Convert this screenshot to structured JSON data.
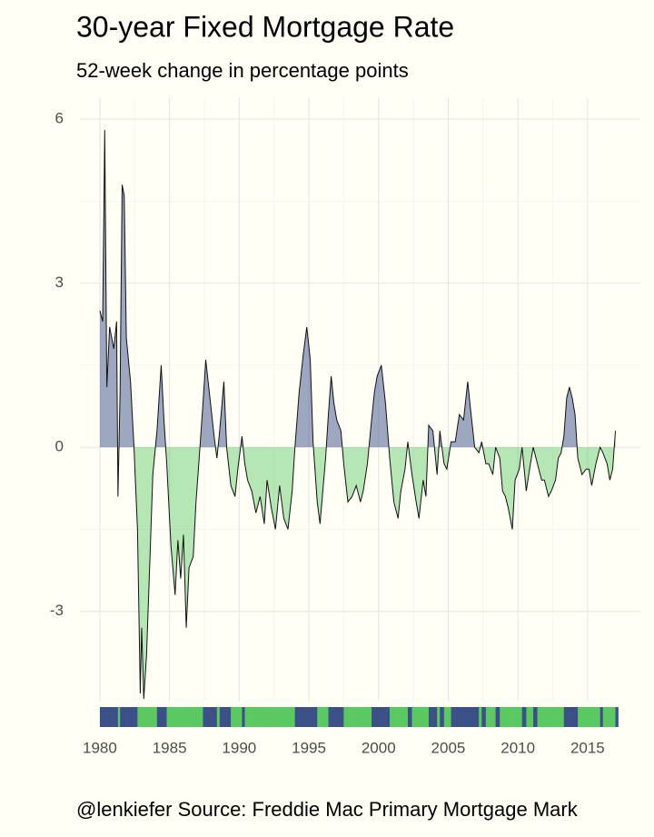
{
  "chart_data": {
    "type": "area",
    "title": "30-year Fixed Mortgage Rate",
    "subtitle": "52-week change in percentage points",
    "caption": "@lenkiefer Source: Freddie Mac Primary Mortgage Mark",
    "positive_color": "#3c5088",
    "negative_color": "#5bc862",
    "line_color": "#111111",
    "grid": true,
    "xlim": [
      1978.57,
      2018.79
    ],
    "xticks": [
      1980,
      1985,
      1990,
      1995,
      2000,
      2005,
      2010,
      2015
    ],
    "ylim": [
      -4.65,
      6.4
    ],
    "yticks": [
      -3,
      0,
      3,
      6
    ],
    "x": [
      1980.0,
      1980.2,
      1980.35,
      1980.5,
      1980.7,
      1981.0,
      1981.2,
      1981.3,
      1981.45,
      1981.6,
      1981.75,
      1981.9,
      1982.2,
      1982.45,
      1982.7,
      1982.9,
      1983.0,
      1983.15,
      1983.35,
      1983.6,
      1983.8,
      1984.1,
      1984.4,
      1984.6,
      1984.8,
      1985.1,
      1985.4,
      1985.6,
      1985.8,
      1986.0,
      1986.2,
      1986.4,
      1986.7,
      1986.9,
      1987.1,
      1987.4,
      1987.6,
      1987.9,
      1988.2,
      1988.4,
      1988.6,
      1988.9,
      1989.1,
      1989.4,
      1989.7,
      1989.9,
      1990.2,
      1990.4,
      1990.6,
      1990.9,
      1991.2,
      1991.5,
      1991.8,
      1992.0,
      1992.3,
      1992.6,
      1992.9,
      1993.2,
      1993.5,
      1993.8,
      1994.0,
      1994.3,
      1994.6,
      1994.85,
      1995.1,
      1995.3,
      1995.6,
      1995.8,
      1996.0,
      1996.2,
      1996.4,
      1996.6,
      1996.8,
      1997.0,
      1997.3,
      1997.5,
      1997.8,
      1998.1,
      1998.4,
      1998.7,
      1998.9,
      1999.2,
      1999.5,
      1999.7,
      1999.9,
      2000.2,
      2000.5,
      2000.8,
      2001.1,
      2001.4,
      2001.6,
      2001.9,
      2002.1,
      2002.4,
      2002.7,
      2002.9,
      2003.2,
      2003.4,
      2003.6,
      2003.9,
      2004.2,
      2004.4,
      2004.7,
      2004.9,
      2005.2,
      2005.5,
      2005.8,
      2006.1,
      2006.4,
      2006.6,
      2006.9,
      2007.2,
      2007.4,
      2007.7,
      2007.9,
      2008.2,
      2008.4,
      2008.7,
      2008.9,
      2009.1,
      2009.3,
      2009.6,
      2009.8,
      2010.1,
      2010.3,
      2010.6,
      2010.9,
      2011.1,
      2011.4,
      2011.7,
      2011.9,
      2012.2,
      2012.4,
      2012.7,
      2012.9,
      2013.1,
      2013.3,
      2013.5,
      2013.7,
      2013.9,
      2014.1,
      2014.3,
      2014.6,
      2014.9,
      2015.1,
      2015.3,
      2015.6,
      2015.9,
      2016.1,
      2016.4,
      2016.6,
      2016.8,
      2017.0
    ],
    "values": [
      2.5,
      2.3,
      5.8,
      1.1,
      2.2,
      1.8,
      2.3,
      -0.9,
      1.0,
      4.8,
      4.6,
      2.0,
      1.2,
      0.0,
      -1.5,
      -4.5,
      -3.3,
      -4.6,
      -3.8,
      -2.0,
      -0.5,
      0.3,
      1.5,
      0.5,
      -0.3,
      -1.8,
      -2.7,
      -1.7,
      -2.4,
      -1.6,
      -3.3,
      -2.2,
      -2.0,
      -1.0,
      -0.3,
      0.8,
      1.6,
      0.9,
      0.2,
      -0.2,
      0.3,
      1.2,
      0.0,
      -0.7,
      -0.9,
      -0.4,
      0.2,
      -0.3,
      -0.6,
      -0.8,
      -1.2,
      -0.9,
      -1.4,
      -0.6,
      -1.1,
      -1.5,
      -0.7,
      -1.3,
      -1.5,
      -0.8,
      0.0,
      1.0,
      1.7,
      2.2,
      1.6,
      0.1,
      -1.0,
      -1.4,
      -0.8,
      -0.2,
      0.6,
      1.3,
      0.8,
      0.5,
      0.3,
      -0.3,
      -1.0,
      -0.9,
      -0.7,
      -1.0,
      -0.8,
      -0.3,
      0.5,
      1.0,
      1.3,
      1.5,
      0.8,
      -0.2,
      -1.0,
      -1.3,
      -0.8,
      -0.4,
      0.1,
      -0.5,
      -1.0,
      -1.3,
      -0.6,
      -0.9,
      0.4,
      0.3,
      -0.5,
      0.3,
      -0.3,
      -0.4,
      0.1,
      0.1,
      0.6,
      0.5,
      1.2,
      0.7,
      0.0,
      -0.1,
      0.1,
      -0.3,
      -0.3,
      -0.5,
      0.0,
      -0.2,
      -0.8,
      -0.9,
      -1.1,
      -1.5,
      -0.6,
      -0.4,
      0.0,
      -0.8,
      -0.3,
      0.0,
      -0.3,
      -0.6,
      -0.6,
      -0.9,
      -0.8,
      -0.6,
      -0.2,
      -0.1,
      0.2,
      0.9,
      1.1,
      0.9,
      0.6,
      -0.2,
      -0.5,
      -0.4,
      -0.4,
      -0.7,
      -0.3,
      0.0,
      -0.1,
      -0.3,
      -0.6,
      -0.4,
      0.3
    ]
  }
}
